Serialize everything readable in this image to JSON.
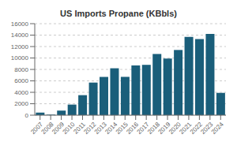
{
  "chart_data": {
    "type": "bar",
    "title": "US Imports Propane (KBbls)",
    "categories": [
      "2007",
      "2008",
      "2009",
      "2010",
      "2011",
      "2012",
      "2013",
      "2014",
      "2015",
      "2016",
      "2017",
      "2018",
      "2019",
      "2020",
      "2021",
      "2022",
      "2023",
      "2024"
    ],
    "values": [
      450,
      100,
      800,
      1850,
      3500,
      5700,
      6700,
      8200,
      6700,
      8700,
      8800,
      10700,
      9900,
      11400,
      13700,
      13300,
      14200,
      3900
    ],
    "color": "#1a5e7a",
    "ylim": [
      0,
      16000
    ],
    "yticks": [
      0,
      2000,
      4000,
      6000,
      8000,
      10000,
      12000,
      14000,
      16000
    ],
    "grid": true
  }
}
